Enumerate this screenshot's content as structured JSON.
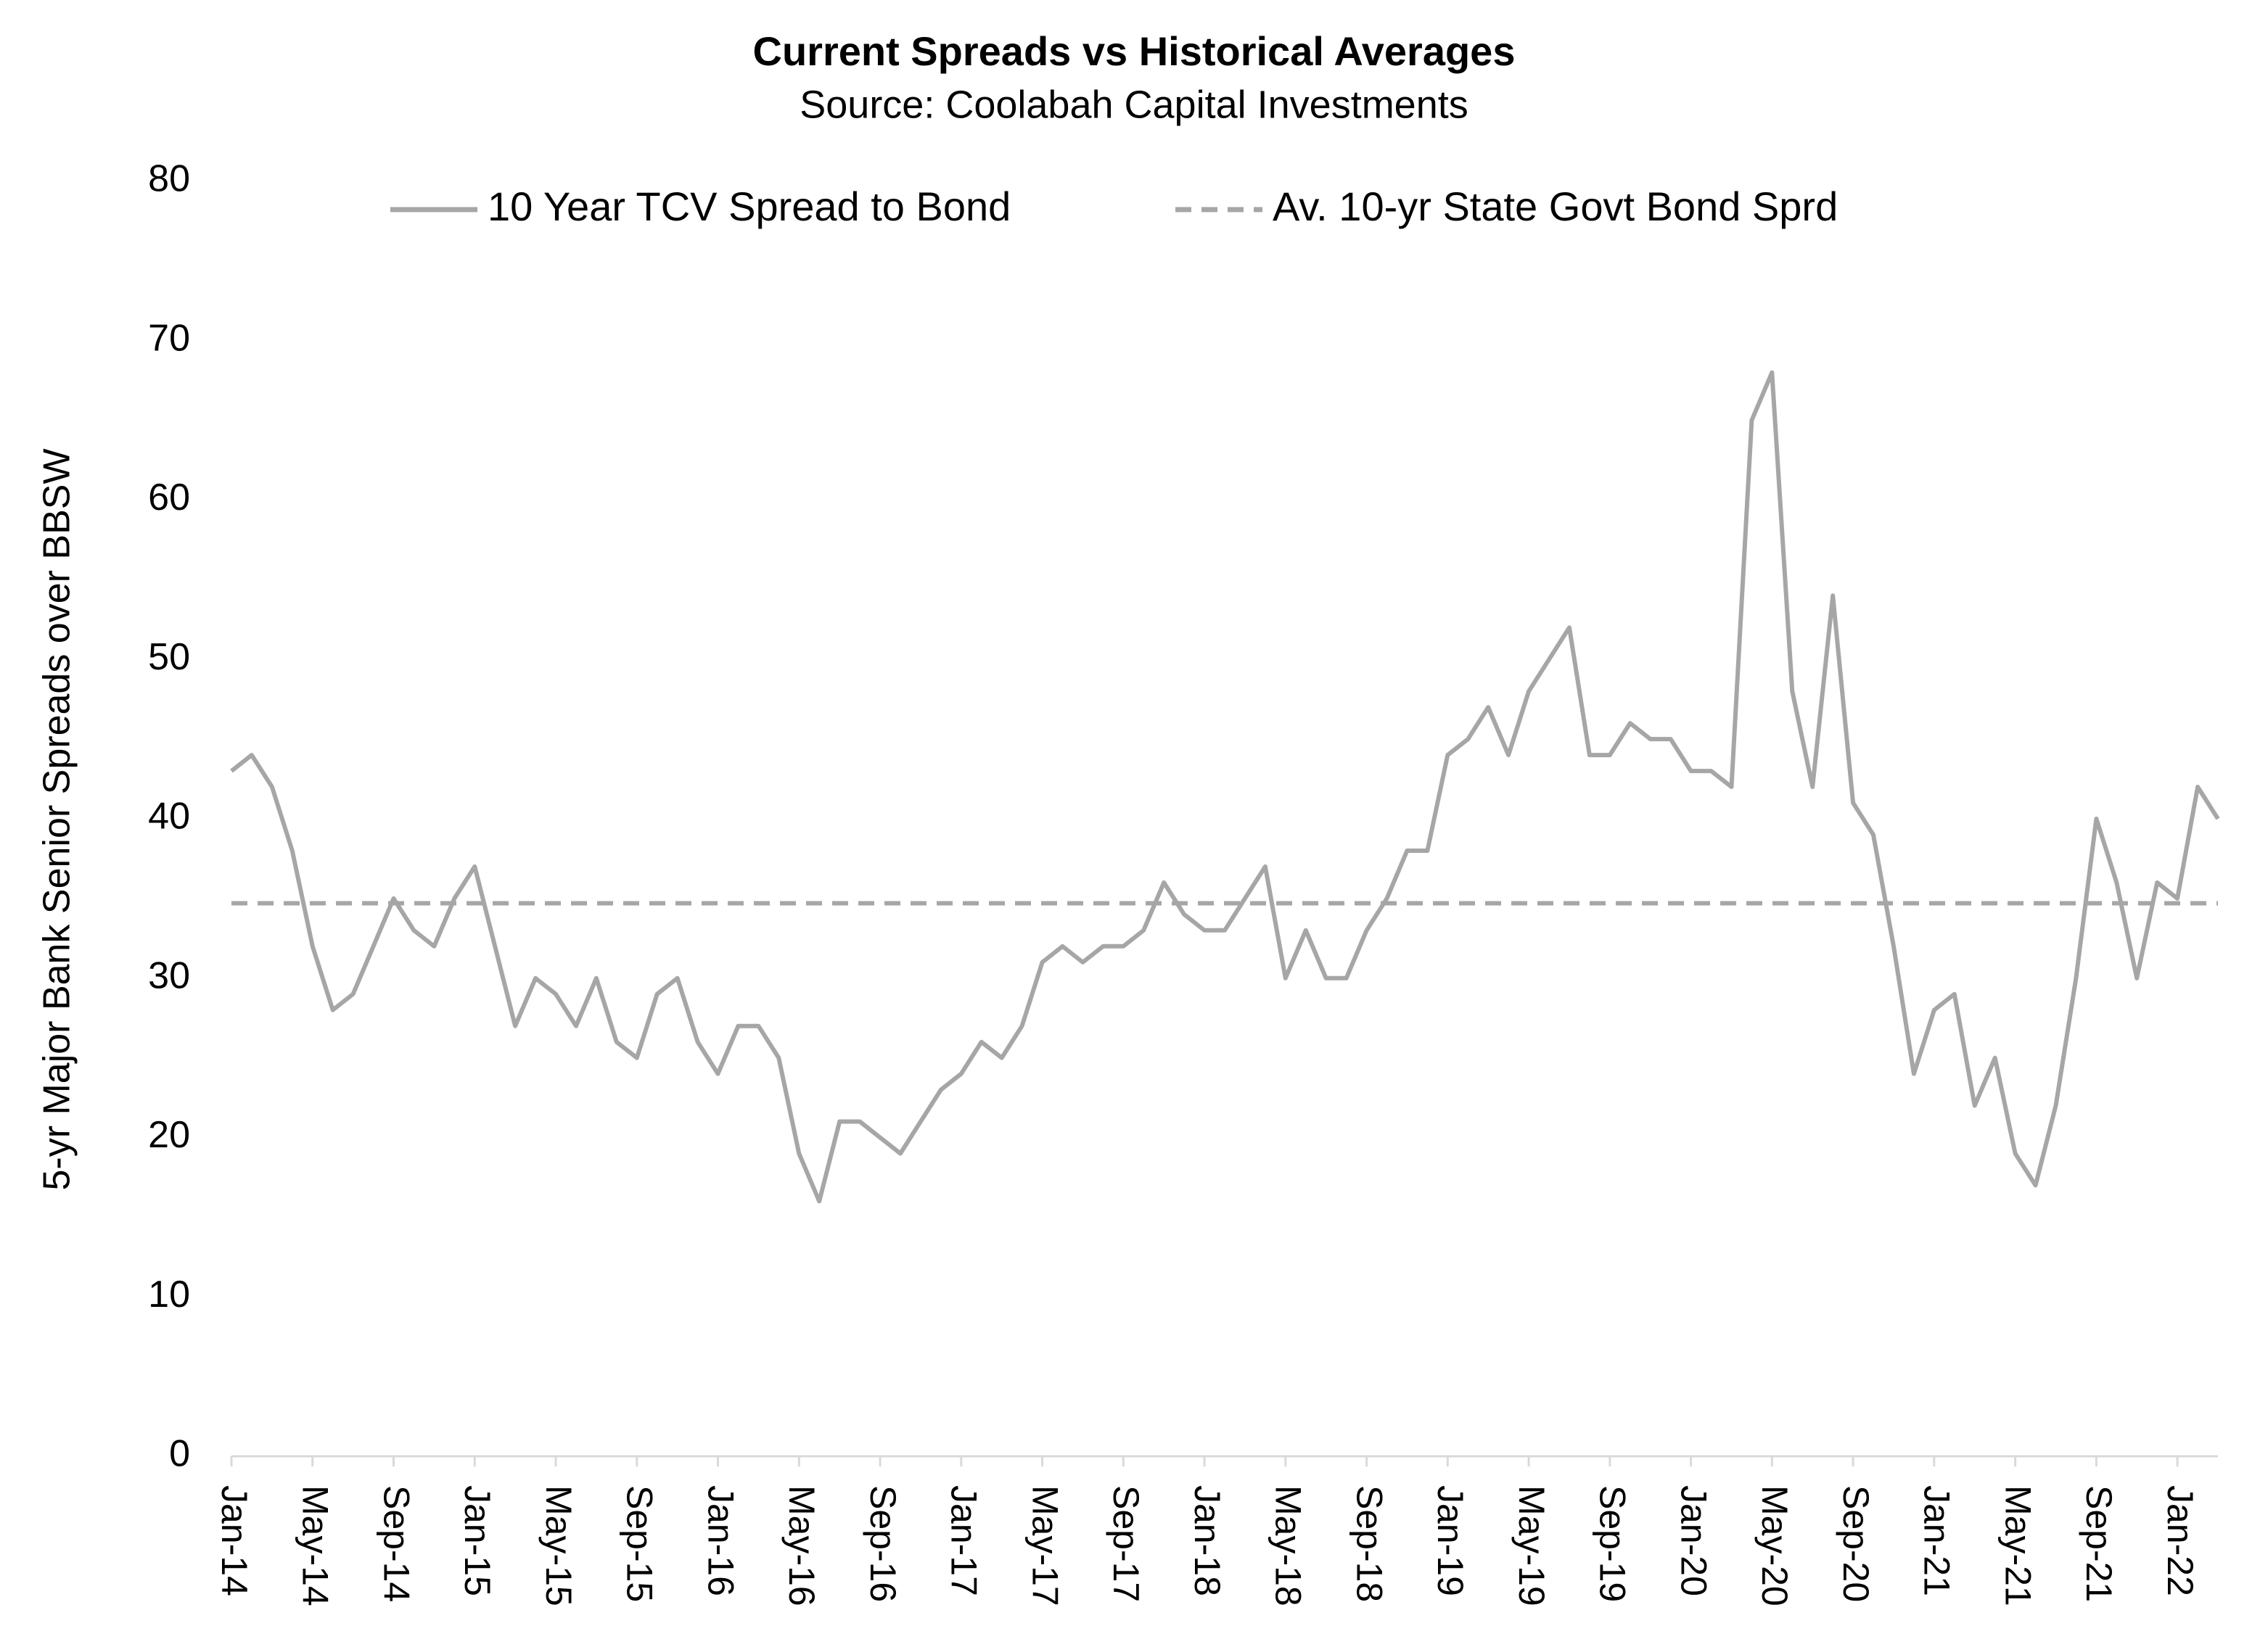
{
  "chart_data": {
    "type": "line",
    "title": "Current Spreads vs Historical Averages",
    "subtitle": "Source: Coolabah Capital Investments",
    "y_label": "5-yr Major Bank Senior Spreads over BBSW",
    "categories": [
      "Jan-14",
      null,
      null,
      null,
      "May-14",
      null,
      null,
      null,
      "Sep-14",
      null,
      null,
      null,
      "Jan-15",
      null,
      null,
      null,
      "May-15",
      null,
      null,
      null,
      "Sep-15",
      null,
      null,
      null,
      "Jan-16",
      null,
      null,
      null,
      "May-16",
      null,
      null,
      null,
      "Sep-16",
      null,
      null,
      null,
      "Jan-17",
      null,
      null,
      null,
      "May-17",
      null,
      null,
      null,
      "Sep-17",
      null,
      null,
      null,
      "Jan-18",
      null,
      null,
      null,
      "May-18",
      null,
      null,
      null,
      "Sep-18",
      null,
      null,
      null,
      "Jan-19",
      null,
      null,
      null,
      "May-19",
      null,
      null,
      null,
      "Sep-19",
      null,
      null,
      null,
      "Jan-20",
      null,
      null,
      null,
      "May-20",
      null,
      null,
      null,
      "Sep-20",
      null,
      null,
      null,
      "Jan-21",
      null,
      null,
      null,
      "May-21",
      null,
      null,
      null,
      "Sep-21",
      null,
      null,
      null,
      "Jan-22",
      null,
      null
    ],
    "series": [
      {
        "name": "10 Year TCV Spread to Bond",
        "color": "#a6a6a6",
        "dash": false,
        "values": [
          43,
          44,
          42,
          38,
          32,
          28,
          29,
          32,
          35,
          33,
          32,
          35,
          37,
          32,
          27,
          30,
          29,
          27,
          30,
          26,
          25,
          29,
          30,
          26,
          24,
          27,
          27,
          25,
          19,
          16,
          21,
          21,
          20,
          19,
          21,
          23,
          24,
          26,
          25,
          27,
          31,
          32,
          31,
          32,
          32,
          33,
          36,
          34,
          33,
          33,
          35,
          37,
          30,
          33,
          30,
          30,
          33,
          35,
          38,
          38,
          44,
          45,
          47,
          44,
          48,
          50,
          52,
          44,
          44,
          46,
          45,
          45,
          43,
          43,
          42,
          65,
          68,
          48,
          42,
          54,
          41,
          39,
          32,
          24,
          28,
          29,
          22,
          25,
          19,
          17,
          22,
          30,
          40,
          36,
          30,
          36,
          35,
          42,
          40
        ]
      },
      {
        "name": "Av. 10-yr State Govt Bond Sprd",
        "color": "#a6a6a6",
        "dash": true,
        "values": [
          34.7,
          34.7,
          34.7,
          34.7,
          34.7,
          34.7,
          34.7,
          34.7,
          34.7,
          34.7,
          34.7,
          34.7,
          34.7,
          34.7,
          34.7,
          34.7,
          34.7,
          34.7,
          34.7,
          34.7,
          34.7,
          34.7,
          34.7,
          34.7,
          34.7,
          34.7,
          34.7,
          34.7,
          34.7,
          34.7,
          34.7,
          34.7,
          34.7,
          34.7,
          34.7,
          34.7,
          34.7,
          34.7,
          34.7,
          34.7,
          34.7,
          34.7,
          34.7,
          34.7,
          34.7,
          34.7,
          34.7,
          34.7,
          34.7,
          34.7,
          34.7,
          34.7,
          34.7,
          34.7,
          34.7,
          34.7,
          34.7,
          34.7,
          34.7,
          34.7,
          34.7,
          34.7,
          34.7,
          34.7,
          34.7,
          34.7,
          34.7,
          34.7,
          34.7,
          34.7,
          34.7,
          34.7,
          34.7,
          34.7,
          34.7,
          34.7,
          34.7,
          34.7,
          34.7,
          34.7,
          34.7,
          34.7,
          34.7,
          34.7,
          34.7,
          34.7,
          34.7,
          34.7,
          34.7,
          34.7,
          34.7,
          34.7,
          34.7,
          34.7,
          34.7,
          34.7,
          34.7,
          34.7,
          34.7
        ]
      }
    ],
    "ylim": [
      0,
      80
    ],
    "yticks": [
      0,
      10,
      20,
      30,
      40,
      50,
      60,
      70,
      80
    ],
    "grid": false,
    "legend": "top"
  }
}
